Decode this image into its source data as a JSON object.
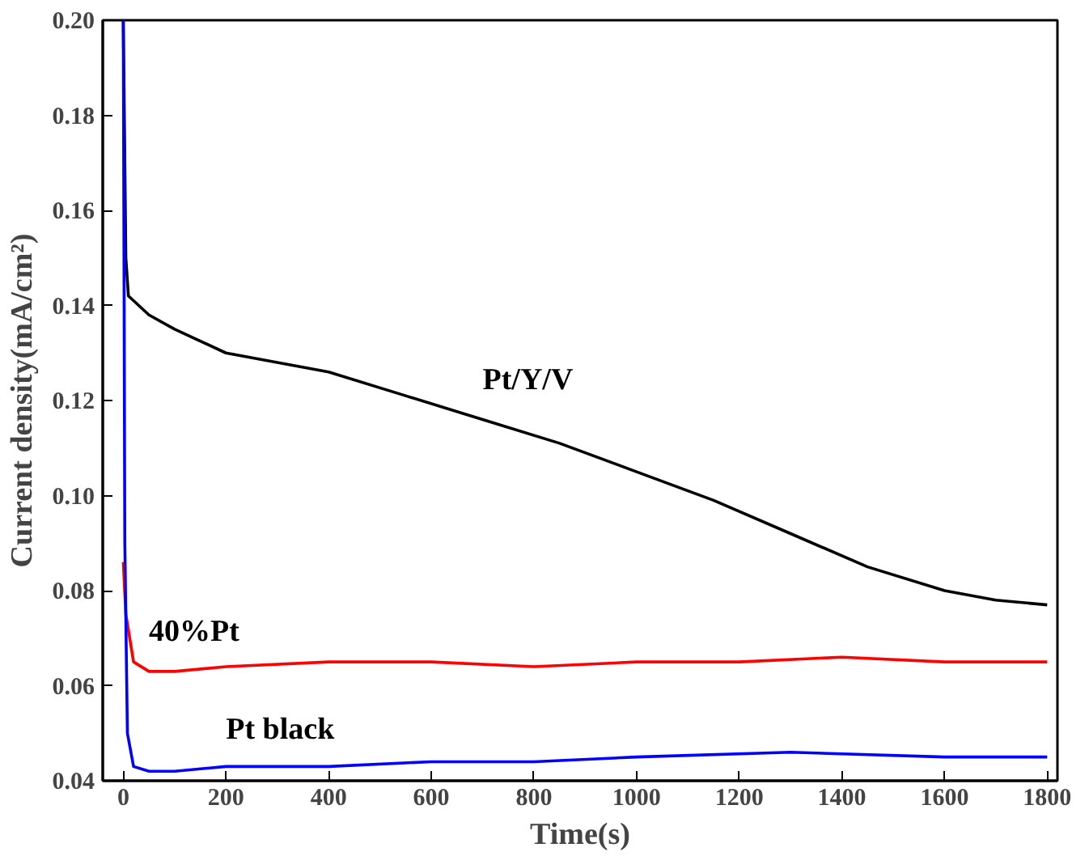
{
  "chart_data": {
    "type": "line",
    "xlabel": "Time(s)",
    "ylabel": "Current density(mA/cm²)",
    "xlim": [
      -40,
      1820
    ],
    "ylim": [
      0.04,
      0.2
    ],
    "xticks": [
      0,
      200,
      400,
      600,
      800,
      1000,
      1200,
      1400,
      1600,
      1800
    ],
    "yticks": [
      {
        "value": 0.04,
        "label": "0.04"
      },
      {
        "value": 0.06,
        "label": "0.06"
      },
      {
        "value": 0.08,
        "label": "0.08"
      },
      {
        "value": 0.1,
        "label": "0.10"
      },
      {
        "value": 0.12,
        "label": "0.12"
      },
      {
        "value": 0.14,
        "label": "0.14"
      },
      {
        "value": 0.16,
        "label": "0.16"
      },
      {
        "value": 0.18,
        "label": "0.18"
      },
      {
        "value": 0.2,
        "label": "0.20"
      }
    ],
    "grid": false,
    "series": [
      {
        "name": "Pt/Y/V",
        "color": "#000000",
        "x": [
          0,
          5,
          10,
          50,
          100,
          200,
          300,
          400,
          550,
          700,
          850,
          1000,
          1150,
          1300,
          1450,
          1600,
          1700,
          1800
        ],
        "values": [
          0.2,
          0.15,
          0.142,
          0.138,
          0.135,
          0.13,
          0.128,
          0.126,
          0.121,
          0.116,
          0.111,
          0.105,
          0.099,
          0.092,
          0.085,
          0.08,
          0.078,
          0.077
        ]
      },
      {
        "name": "40%Pt",
        "color": "#ff0000",
        "x": [
          0,
          5,
          20,
          50,
          100,
          200,
          400,
          600,
          800,
          1000,
          1200,
          1400,
          1600,
          1800
        ],
        "values": [
          0.086,
          0.075,
          0.065,
          0.063,
          0.063,
          0.064,
          0.065,
          0.065,
          0.064,
          0.065,
          0.065,
          0.066,
          0.065,
          0.065
        ]
      },
      {
        "name": "Pt black",
        "color": "#0000ff",
        "x": [
          0,
          3,
          8,
          20,
          50,
          100,
          200,
          400,
          600,
          800,
          1000,
          1300,
          1600,
          1800
        ],
        "values": [
          0.2,
          0.09,
          0.05,
          0.043,
          0.042,
          0.042,
          0.043,
          0.043,
          0.044,
          0.044,
          0.045,
          0.046,
          0.045,
          0.045
        ]
      }
    ]
  }
}
